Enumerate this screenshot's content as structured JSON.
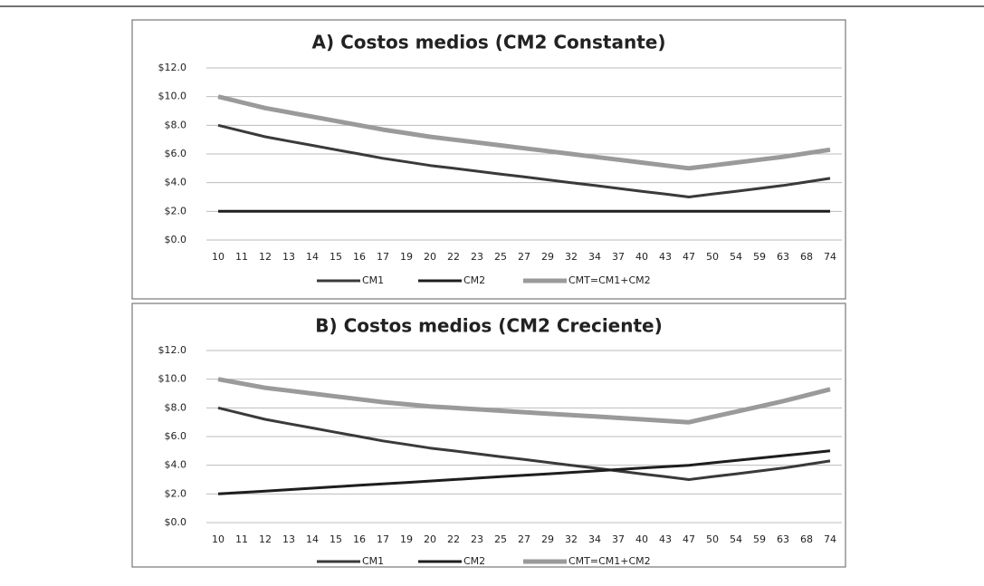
{
  "chart_data": [
    {
      "type": "line",
      "title": "A) Costos medios (CM2 Constante)",
      "categories": [
        "10",
        "11",
        "12",
        "13",
        "14",
        "15",
        "16",
        "17",
        "19",
        "20",
        "22",
        "23",
        "25",
        "27",
        "29",
        "32",
        "34",
        "37",
        "40",
        "43",
        "47",
        "50",
        "54",
        "59",
        "63",
        "68",
        "74"
      ],
      "series": [
        {
          "name": "CM1",
          "color": "#3a3a3a",
          "values": [
            8,
            7.6,
            7.2,
            6.9,
            6.6,
            6.3,
            6.0,
            5.7,
            5.45,
            5.2,
            5.0,
            4.8,
            4.6,
            4.4,
            4.2,
            4.0,
            3.8,
            3.6,
            3.4,
            3.2,
            3.0,
            3.2,
            3.4,
            3.6,
            3.8,
            4.05,
            4.3
          ]
        },
        {
          "name": "CM2",
          "color": "#1e1e1e",
          "values": [
            2,
            2,
            2,
            2,
            2,
            2,
            2,
            2,
            2,
            2,
            2,
            2,
            2,
            2,
            2,
            2,
            2,
            2,
            2,
            2,
            2,
            2,
            2,
            2,
            2,
            2,
            2
          ]
        },
        {
          "name": "CMT=CM1+CM2",
          "color": "#9a9a9a",
          "values": [
            10,
            9.6,
            9.2,
            8.9,
            8.6,
            8.3,
            8.0,
            7.7,
            7.45,
            7.2,
            7.0,
            6.8,
            6.6,
            6.4,
            6.2,
            6.0,
            5.8,
            5.6,
            5.4,
            5.2,
            5.0,
            5.2,
            5.4,
            5.6,
            5.8,
            6.05,
            6.3
          ]
        }
      ],
      "ylim": [
        0,
        12
      ],
      "yticks": [
        {
          "value": 0,
          "label": "$0.0"
        },
        {
          "value": 2,
          "label": "$2.0"
        },
        {
          "value": 4,
          "label": "$4.0"
        },
        {
          "value": 6,
          "label": "$6.0"
        },
        {
          "value": 8,
          "label": "$8.0"
        },
        {
          "value": 10,
          "label": "$10.0"
        },
        {
          "value": 12,
          "label": "$12.0"
        }
      ],
      "grid": true,
      "legend": "bottom"
    },
    {
      "type": "line",
      "title": "B) Costos medios (CM2 Creciente)",
      "categories": [
        "10",
        "11",
        "12",
        "13",
        "14",
        "15",
        "16",
        "17",
        "19",
        "20",
        "22",
        "23",
        "25",
        "27",
        "29",
        "32",
        "34",
        "37",
        "40",
        "43",
        "47",
        "50",
        "54",
        "59",
        "63",
        "68",
        "74"
      ],
      "series": [
        {
          "name": "CM1",
          "color": "#3a3a3a",
          "values": [
            8,
            7.6,
            7.2,
            6.9,
            6.6,
            6.3,
            6.0,
            5.7,
            5.45,
            5.2,
            5.0,
            4.8,
            4.6,
            4.4,
            4.2,
            4.0,
            3.8,
            3.6,
            3.4,
            3.2,
            3.0,
            3.2,
            3.4,
            3.6,
            3.8,
            4.05,
            4.3
          ]
        },
        {
          "name": "CM2",
          "color": "#1e1e1e",
          "values": [
            2,
            2.1,
            2.2,
            2.3,
            2.4,
            2.5,
            2.6,
            2.7,
            2.8,
            2.9,
            3.0,
            3.1,
            3.2,
            3.3,
            3.4,
            3.5,
            3.6,
            3.7,
            3.8,
            3.9,
            4.0,
            4.17,
            4.33,
            4.5,
            4.67,
            4.83,
            5.0
          ]
        },
        {
          "name": "CMT=CM1+CM2",
          "color": "#9a9a9a",
          "values": [
            10,
            9.7,
            9.4,
            9.2,
            9.0,
            8.8,
            8.6,
            8.4,
            8.25,
            8.1,
            8.0,
            7.9,
            7.8,
            7.7,
            7.6,
            7.5,
            7.4,
            7.3,
            7.2,
            7.1,
            7.0,
            7.37,
            7.73,
            8.1,
            8.47,
            8.88,
            9.3
          ]
        }
      ],
      "ylim": [
        0,
        12
      ],
      "yticks": [
        {
          "value": 0,
          "label": "$0.0"
        },
        {
          "value": 2,
          "label": "$2.0"
        },
        {
          "value": 4,
          "label": "$4.0"
        },
        {
          "value": 6,
          "label": "$6.0"
        },
        {
          "value": 8,
          "label": "$8.0"
        },
        {
          "value": 10,
          "label": "$10.0"
        },
        {
          "value": 12,
          "label": "$12.0"
        }
      ],
      "grid": true,
      "legend": "bottom"
    }
  ]
}
